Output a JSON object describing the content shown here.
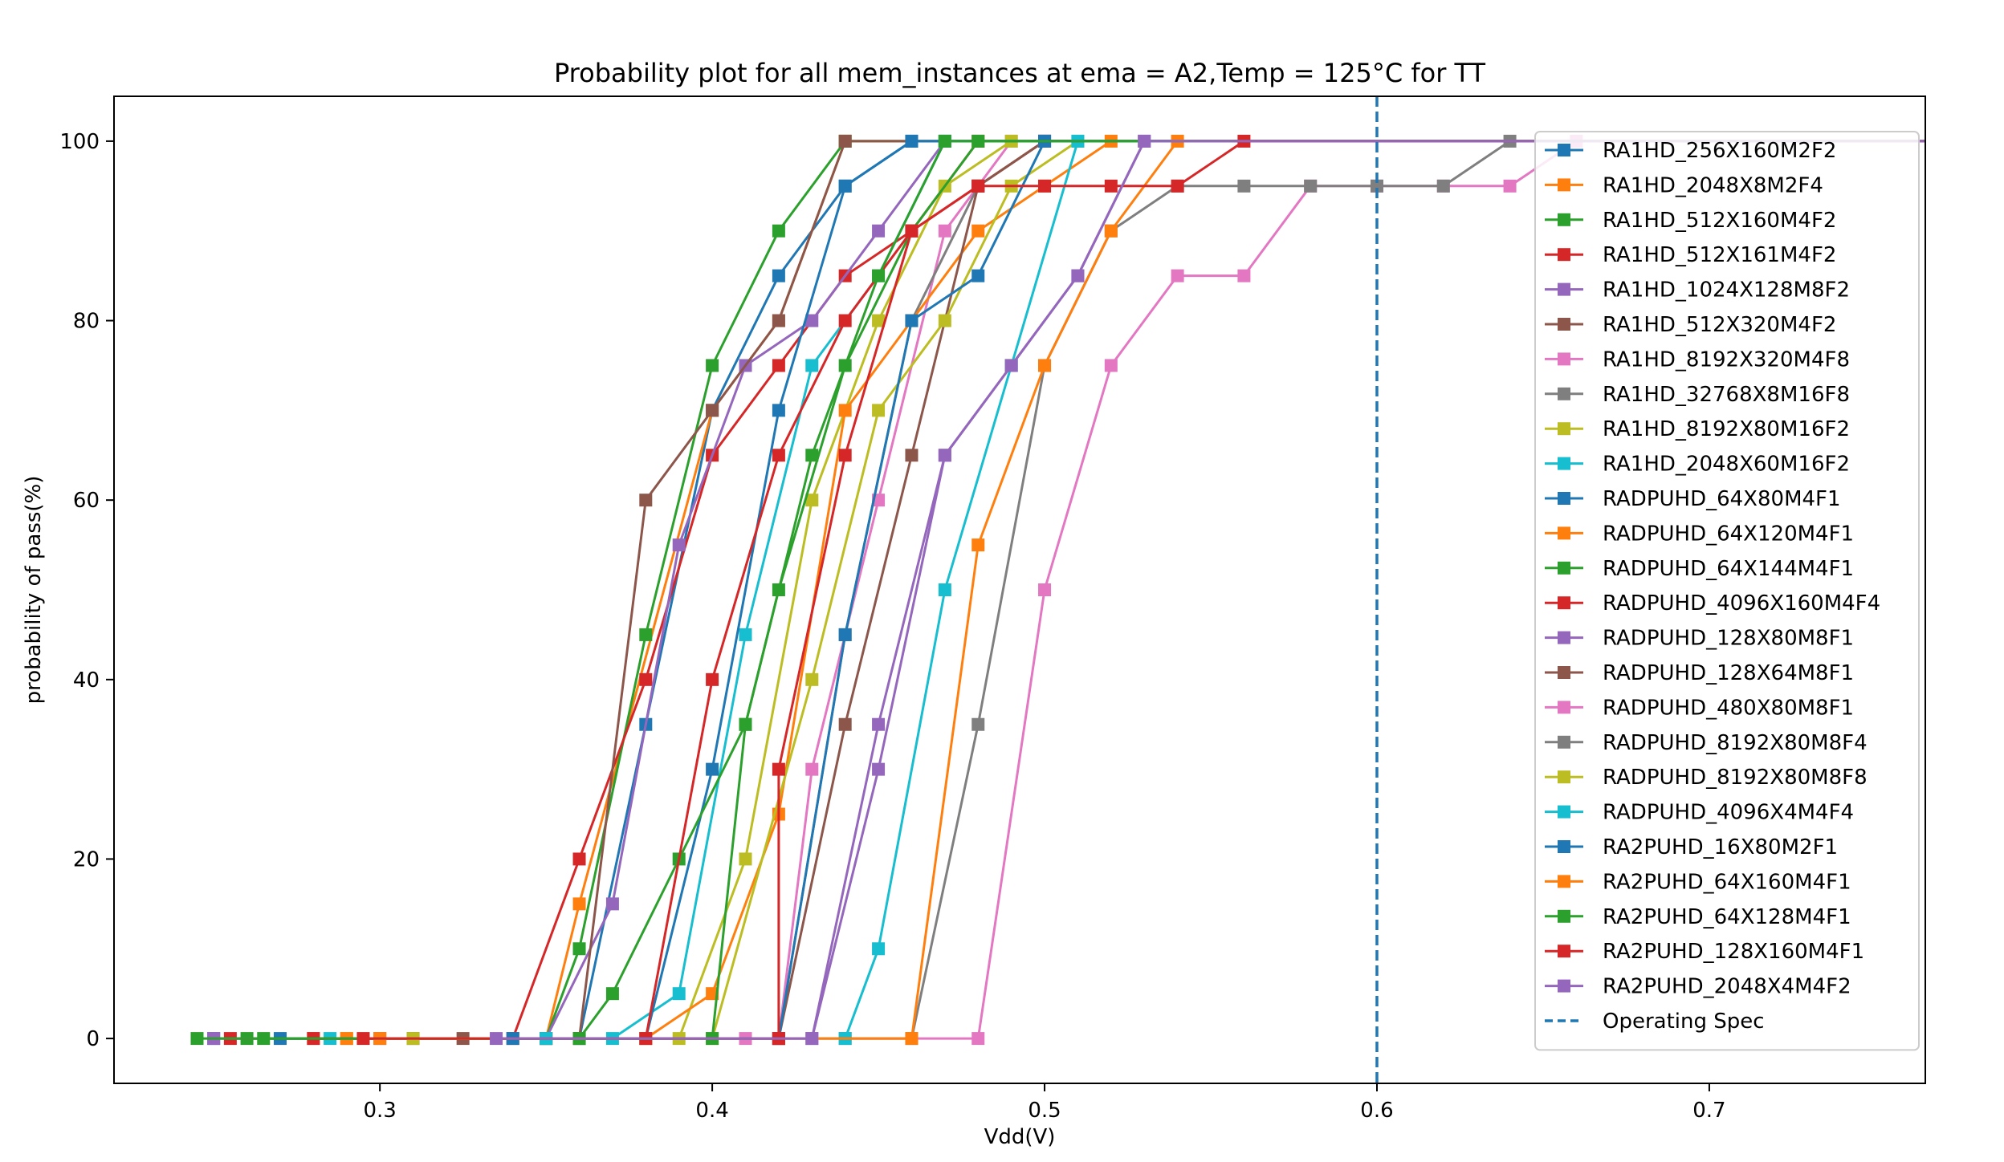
{
  "chart_data": {
    "type": "line",
    "title": "Probability plot for all mem_instances at ema = A2,Temp = 125°C for TT",
    "xlabel": "Vdd(V)",
    "ylabel": "probability of pass(%)",
    "xlim": [
      0.22,
      0.765
    ],
    "ylim": [
      -5,
      105
    ],
    "xticks": [
      0.3,
      0.4,
      0.5,
      0.6,
      0.7
    ],
    "xtick_labels": [
      "0.3",
      "0.4",
      "0.5",
      "0.6",
      "0.7"
    ],
    "yticks": [
      0,
      20,
      40,
      60,
      80,
      100
    ],
    "ytick_labels": [
      "0",
      "20",
      "40",
      "60",
      "80",
      "100"
    ],
    "grid": false,
    "legend_position": "right",
    "marker": "square",
    "vline": {
      "x": 0.6,
      "name": "Operating Spec",
      "style": "dashed",
      "color": "#1f77b4"
    },
    "series": [
      {
        "name": "RA1HD_256X160M2F2",
        "color": "#1f77b4",
        "points": [
          [
            0.25,
            0
          ],
          [
            0.36,
            0
          ],
          [
            0.38,
            35
          ],
          [
            0.4,
            70
          ],
          [
            0.42,
            85
          ],
          [
            0.44,
            95
          ],
          [
            0.46,
            100
          ],
          [
            0.8,
            100
          ]
        ]
      },
      {
        "name": "RA1HD_2048X8M2F4",
        "color": "#ff7f0e",
        "points": [
          [
            0.28,
            0
          ],
          [
            0.35,
            0
          ],
          [
            0.36,
            15
          ],
          [
            0.4,
            70
          ],
          [
            0.42,
            80
          ],
          [
            0.44,
            100
          ],
          [
            0.8,
            100
          ]
        ]
      },
      {
        "name": "RA1HD_512X160M4F2",
        "color": "#2ca02c",
        "points": [
          [
            0.26,
            0
          ],
          [
            0.35,
            0
          ],
          [
            0.36,
            10
          ],
          [
            0.38,
            45
          ],
          [
            0.4,
            75
          ],
          [
            0.42,
            90
          ],
          [
            0.44,
            100
          ],
          [
            0.8,
            100
          ]
        ]
      },
      {
        "name": "RA1HD_512X161M4F2",
        "color": "#d62728",
        "points": [
          [
            0.255,
            0
          ],
          [
            0.34,
            0
          ],
          [
            0.36,
            20
          ],
          [
            0.38,
            40
          ],
          [
            0.4,
            65
          ],
          [
            0.42,
            75
          ],
          [
            0.44,
            85
          ],
          [
            0.46,
            90
          ],
          [
            0.48,
            100
          ],
          [
            0.8,
            100
          ]
        ]
      },
      {
        "name": "RA1HD_1024X128M8F2",
        "color": "#9467bd",
        "points": [
          [
            0.25,
            0
          ],
          [
            0.35,
            0
          ],
          [
            0.37,
            15
          ],
          [
            0.39,
            55
          ],
          [
            0.41,
            75
          ],
          [
            0.43,
            80
          ],
          [
            0.45,
            90
          ],
          [
            0.47,
            100
          ],
          [
            0.8,
            100
          ]
        ]
      },
      {
        "name": "RA1HD_512X320M4F2",
        "color": "#8c564b",
        "points": [
          [
            0.325,
            0
          ],
          [
            0.36,
            0
          ],
          [
            0.38,
            60
          ],
          [
            0.4,
            70
          ],
          [
            0.42,
            80
          ],
          [
            0.44,
            100
          ],
          [
            0.8,
            100
          ]
        ]
      },
      {
        "name": "RA1HD_8192X320M4F8",
        "color": "#e377c2",
        "points": [
          [
            0.42,
            0
          ],
          [
            0.43,
            30
          ],
          [
            0.45,
            60
          ],
          [
            0.47,
            90
          ],
          [
            0.49,
            100
          ],
          [
            0.8,
            100
          ]
        ]
      },
      {
        "name": "RA1HD_32768X8M16F8",
        "color": "#7f7f7f",
        "points": [
          [
            0.35,
            0
          ],
          [
            0.42,
            0
          ],
          [
            0.44,
            45
          ],
          [
            0.46,
            80
          ],
          [
            0.48,
            95
          ],
          [
            0.5,
            100
          ],
          [
            0.8,
            100
          ]
        ]
      },
      {
        "name": "RA1HD_8192X80M16F2",
        "color": "#bcbd22",
        "points": [
          [
            0.29,
            0
          ],
          [
            0.39,
            0
          ],
          [
            0.41,
            20
          ],
          [
            0.43,
            60
          ],
          [
            0.45,
            80
          ],
          [
            0.47,
            95
          ],
          [
            0.49,
            100
          ],
          [
            0.8,
            100
          ]
        ]
      },
      {
        "name": "RA1HD_2048X60M16F2",
        "color": "#17becf",
        "points": [
          [
            0.285,
            0
          ],
          [
            0.37,
            0
          ],
          [
            0.39,
            5
          ],
          [
            0.41,
            45
          ],
          [
            0.43,
            75
          ],
          [
            0.45,
            85
          ],
          [
            0.47,
            100
          ],
          [
            0.8,
            100
          ]
        ]
      },
      {
        "name": "RADPUHD_64X80M4F1",
        "color": "#1f77b4",
        "points": [
          [
            0.27,
            0
          ],
          [
            0.38,
            0
          ],
          [
            0.4,
            30
          ],
          [
            0.42,
            70
          ],
          [
            0.44,
            95
          ],
          [
            0.46,
            100
          ],
          [
            0.8,
            100
          ]
        ]
      },
      {
        "name": "RADPUHD_64X120M4F1",
        "color": "#ff7f0e",
        "points": [
          [
            0.29,
            0
          ],
          [
            0.38,
            0
          ],
          [
            0.4,
            5
          ],
          [
            0.42,
            25
          ],
          [
            0.44,
            70
          ],
          [
            0.46,
            80
          ],
          [
            0.48,
            90
          ],
          [
            0.5,
            95
          ],
          [
            0.52,
            100
          ],
          [
            0.8,
            100
          ]
        ]
      },
      {
        "name": "RADPUHD_64X144M4F1",
        "color": "#2ca02c",
        "points": [
          [
            0.245,
            0
          ],
          [
            0.36,
            0
          ],
          [
            0.37,
            5
          ],
          [
            0.39,
            20
          ],
          [
            0.41,
            35
          ],
          [
            0.42,
            50
          ],
          [
            0.44,
            75
          ],
          [
            0.46,
            90
          ],
          [
            0.48,
            100
          ],
          [
            0.8,
            100
          ]
        ]
      },
      {
        "name": "RADPUHD_4096X160M4F4",
        "color": "#d62728",
        "points": [
          [
            0.28,
            0
          ],
          [
            0.38,
            0
          ],
          [
            0.4,
            40
          ],
          [
            0.42,
            65
          ],
          [
            0.44,
            80
          ],
          [
            0.46,
            90
          ],
          [
            0.48,
            95
          ],
          [
            0.5,
            100
          ],
          [
            0.8,
            100
          ]
        ]
      },
      {
        "name": "RADPUHD_128X80M8F1",
        "color": "#9467bd",
        "points": [
          [
            0.3,
            0
          ],
          [
            0.43,
            0
          ],
          [
            0.45,
            35
          ],
          [
            0.47,
            65
          ],
          [
            0.49,
            75
          ],
          [
            0.51,
            85
          ],
          [
            0.53,
            100
          ],
          [
            0.8,
            100
          ]
        ]
      },
      {
        "name": "RADPUHD_128X64M8F1",
        "color": "#8c564b",
        "points": [
          [
            0.31,
            0
          ],
          [
            0.42,
            0
          ],
          [
            0.44,
            35
          ],
          [
            0.46,
            65
          ],
          [
            0.48,
            95
          ],
          [
            0.5,
            100
          ],
          [
            0.8,
            100
          ]
        ]
      },
      {
        "name": "RADPUHD_480X80M8F1",
        "color": "#e377c2",
        "points": [
          [
            0.41,
            0
          ],
          [
            0.48,
            0
          ],
          [
            0.5,
            50
          ],
          [
            0.52,
            75
          ],
          [
            0.54,
            85
          ],
          [
            0.56,
            85
          ],
          [
            0.58,
            95
          ],
          [
            0.6,
            95
          ],
          [
            0.62,
            95
          ],
          [
            0.64,
            95
          ],
          [
            0.66,
            100
          ],
          [
            0.8,
            100
          ]
        ]
      },
      {
        "name": "RADPUHD_8192X80M8F4",
        "color": "#7f7f7f",
        "points": [
          [
            0.44,
            0
          ],
          [
            0.46,
            0
          ],
          [
            0.48,
            35
          ],
          [
            0.5,
            75
          ],
          [
            0.52,
            90
          ],
          [
            0.54,
            95
          ],
          [
            0.56,
            95
          ],
          [
            0.58,
            95
          ],
          [
            0.6,
            95
          ],
          [
            0.62,
            95
          ],
          [
            0.64,
            100
          ],
          [
            0.8,
            100
          ]
        ]
      },
      {
        "name": "RADPUHD_8192X80M8F8",
        "color": "#bcbd22",
        "points": [
          [
            0.31,
            0
          ],
          [
            0.4,
            0
          ],
          [
            0.43,
            40
          ],
          [
            0.45,
            70
          ],
          [
            0.47,
            80
          ],
          [
            0.49,
            95
          ],
          [
            0.51,
            100
          ],
          [
            0.8,
            100
          ]
        ]
      },
      {
        "name": "RADPUHD_4096X4M4F4",
        "color": "#17becf",
        "points": [
          [
            0.35,
            0
          ],
          [
            0.44,
            0
          ],
          [
            0.45,
            10
          ],
          [
            0.47,
            50
          ],
          [
            0.49,
            75
          ],
          [
            0.51,
            100
          ],
          [
            0.8,
            100
          ]
        ]
      },
      {
        "name": "RA2PUHD_16X80M2F1",
        "color": "#1f77b4",
        "points": [
          [
            0.34,
            0
          ],
          [
            0.42,
            0
          ],
          [
            0.44,
            45
          ],
          [
            0.46,
            80
          ],
          [
            0.48,
            85
          ],
          [
            0.5,
            100
          ],
          [
            0.8,
            100
          ]
        ]
      },
      {
        "name": "RA2PUHD_64X160M4F1",
        "color": "#ff7f0e",
        "points": [
          [
            0.3,
            0
          ],
          [
            0.46,
            0
          ],
          [
            0.48,
            55
          ],
          [
            0.5,
            75
          ],
          [
            0.52,
            90
          ],
          [
            0.54,
            100
          ],
          [
            0.8,
            100
          ]
        ]
      },
      {
        "name": "RA2PUHD_64X128M4F1",
        "color": "#2ca02c",
        "points": [
          [
            0.265,
            0
          ],
          [
            0.4,
            0
          ],
          [
            0.41,
            35
          ],
          [
            0.43,
            65
          ],
          [
            0.45,
            85
          ],
          [
            0.47,
            100
          ],
          [
            0.8,
            100
          ]
        ]
      },
      {
        "name": "RA2PUHD_128X160M4F1",
        "color": "#d62728",
        "points": [
          [
            0.295,
            0
          ],
          [
            0.42,
            0
          ],
          [
            0.42,
            30
          ],
          [
            0.44,
            65
          ],
          [
            0.46,
            90
          ],
          [
            0.48,
            95
          ],
          [
            0.5,
            95
          ],
          [
            0.52,
            95
          ],
          [
            0.54,
            95
          ],
          [
            0.56,
            100
          ],
          [
            0.8,
            100
          ]
        ]
      },
      {
        "name": "RA2PUHD_2048X4M4F2",
        "color": "#9467bd",
        "points": [
          [
            0.335,
            0
          ],
          [
            0.43,
            0
          ],
          [
            0.45,
            30
          ],
          [
            0.47,
            65
          ],
          [
            0.49,
            75
          ],
          [
            0.51,
            85
          ],
          [
            0.53,
            100
          ],
          [
            0.8,
            100
          ]
        ]
      }
    ]
  }
}
